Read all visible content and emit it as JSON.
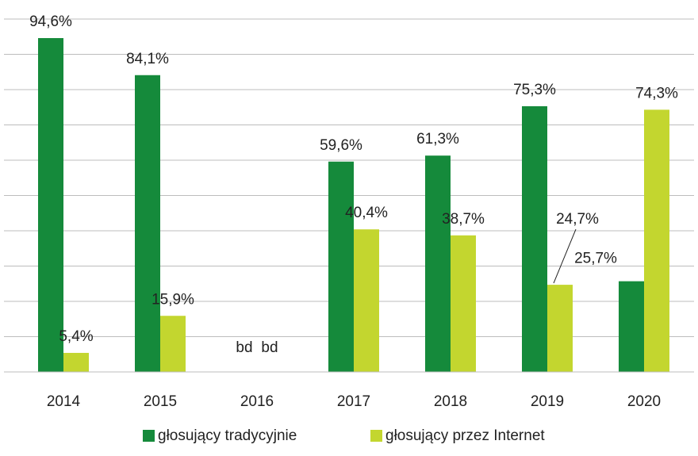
{
  "chart_data": {
    "type": "bar",
    "categories": [
      "2014",
      "2015",
      "2016",
      "2017",
      "2018",
      "2019",
      "2020"
    ],
    "series": [
      {
        "name": "głosujący tradycyjnie",
        "color": "#158a3b",
        "values": [
          94.6,
          84.1,
          null,
          59.6,
          61.3,
          75.3,
          25.7
        ],
        "value_labels": [
          "94,6%",
          "84,1%",
          "bd",
          "59,6%",
          "61,3%",
          "75,3%",
          "25,7%"
        ]
      },
      {
        "name": "głosujący przez Internet",
        "color": "#c3d62f",
        "values": [
          5.4,
          15.9,
          null,
          40.4,
          38.7,
          24.7,
          74.3
        ],
        "value_labels": [
          "5,4%",
          "15,9%",
          "bd",
          "40,4%",
          "38,7%",
          "24,7%",
          "74,3%"
        ]
      }
    ],
    "ylim": [
      0,
      100
    ],
    "yticks": [
      0,
      10,
      20,
      30,
      40,
      50,
      60,
      70,
      80,
      90,
      100
    ],
    "grid": true
  }
}
